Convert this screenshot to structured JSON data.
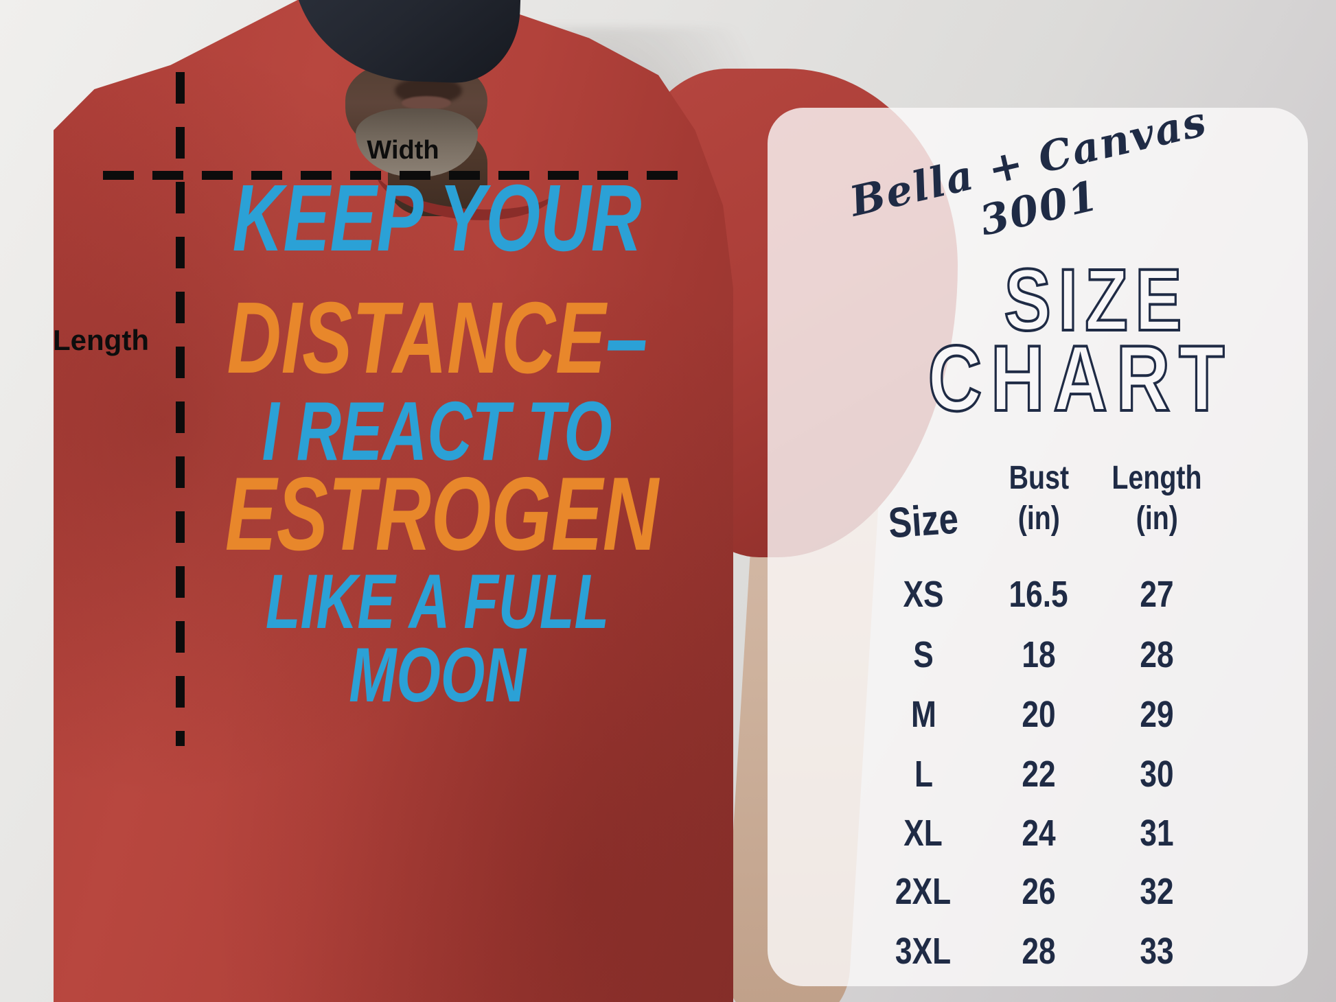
{
  "colors": {
    "shirt_red": "#b2423b",
    "print_blue": "#2ba1d6",
    "print_orange": "#e8872b",
    "panel_background": "rgba(251,250,250,0.80)",
    "panel_text_navy": "#1f2b45",
    "guide_black": "#0d0d0d",
    "wall_gray": "#e6e5e3"
  },
  "photo": {
    "width_label": "Width",
    "length_label": "Length",
    "shirt_print": {
      "lines": [
        {
          "text": "KEEP YOUR",
          "color": "blue"
        },
        {
          "text": "DISTANCE",
          "color": "orange",
          "dash": "–",
          "dash_color": "blue"
        },
        {
          "text": "I REACT TO",
          "color": "blue"
        },
        {
          "text": "ESTROGEN",
          "color": "orange"
        },
        {
          "text": "LIKE A FULL",
          "color": "blue"
        },
        {
          "text": "MOON",
          "color": "blue"
        }
      ]
    }
  },
  "panel": {
    "brand_script": "Bella + Canvas 3001",
    "title_line1": "SIZE",
    "title_line2": "CHART",
    "table_header": {
      "size": "Size",
      "bust_top": "Bust",
      "bust_unit": "(in)",
      "length_top": "Length",
      "length_unit": "(in)"
    }
  },
  "chart_data": {
    "type": "table",
    "title": "SIZE CHART",
    "product": "Bella + Canvas 3001",
    "columns": [
      "Size",
      "Bust (in)",
      "Length (in)"
    ],
    "rows": [
      [
        "XS",
        "16.5",
        "27"
      ],
      [
        "S",
        "18",
        "28"
      ],
      [
        "M",
        "20",
        "29"
      ],
      [
        "L",
        "22",
        "30"
      ],
      [
        "XL",
        "24",
        "31"
      ],
      [
        "2XL",
        "26",
        "32"
      ],
      [
        "3XL",
        "28",
        "33"
      ]
    ]
  }
}
